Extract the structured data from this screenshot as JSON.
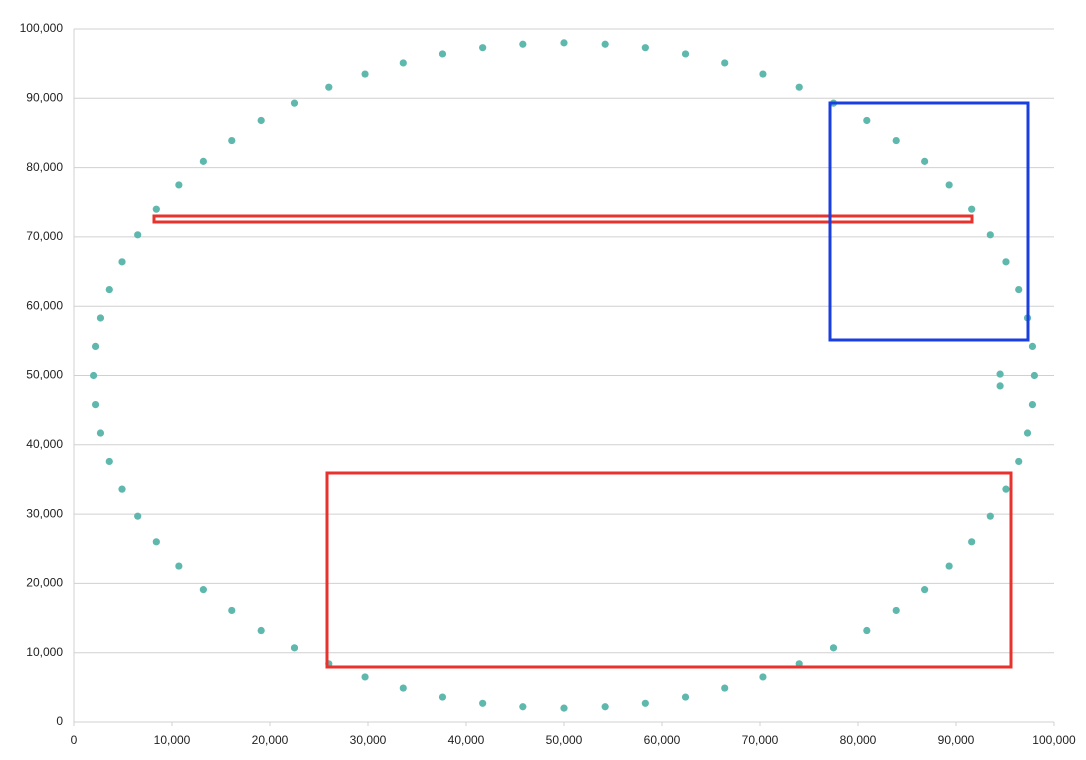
{
  "chart_data": {
    "type": "scatter",
    "color": "#5fb8ad",
    "x": [
      98000,
      97800,
      97300,
      96400,
      95100,
      93500,
      91600,
      89300,
      86800,
      83900,
      80900,
      77500,
      74000,
      70300,
      66400,
      62400,
      58300,
      54200,
      50000,
      45800,
      41700,
      37600,
      33600,
      29700,
      26000,
      22500,
      19100,
      16100,
      13200,
      10700,
      8400,
      6500,
      4900,
      3600,
      2700,
      2200,
      2000,
      2200,
      2700,
      3600,
      4900,
      6500,
      8400,
      10700,
      13200,
      16100,
      19100,
      22500,
      26000,
      29700,
      33600,
      37600,
      41700,
      45800,
      50000,
      54200,
      58300,
      62400,
      66400,
      70300,
      74000,
      77500,
      80900,
      83900,
      86800,
      89300,
      91600,
      93500,
      95100,
      96400,
      97300,
      97800,
      94500,
      94500
    ],
    "values": [
      50000,
      54200,
      58300,
      62400,
      66400,
      70300,
      74000,
      77500,
      80900,
      83900,
      86800,
      89300,
      91600,
      93500,
      95100,
      96400,
      97300,
      97800,
      98000,
      97800,
      97300,
      96400,
      95100,
      93500,
      91600,
      89300,
      86800,
      83900,
      80900,
      77500,
      74000,
      70300,
      66400,
      62400,
      58300,
      54200,
      50000,
      45800,
      41700,
      37600,
      33600,
      29700,
      26000,
      22500,
      19100,
      16100,
      13200,
      10700,
      8400,
      6500,
      4900,
      3600,
      2700,
      2200,
      2000,
      2200,
      2700,
      3600,
      4900,
      6500,
      8400,
      10700,
      13200,
      16100,
      19100,
      22500,
      26000,
      29700,
      33600,
      37600,
      41700,
      45800,
      50200,
      48500
    ],
    "xlim": [
      0,
      100000
    ],
    "xticks": [
      0,
      {
        "value": 10000,
        "label": "10,000"
      },
      {
        "value": 20000,
        "label": "20,000"
      },
      {
        "value": 30000,
        "label": "30,000"
      },
      {
        "value": 40000,
        "label": "40,000"
      },
      {
        "value": 50000,
        "label": "50,000"
      },
      {
        "value": 60000,
        "label": "60,000"
      },
      {
        "value": 70000,
        "label": "70,000"
      },
      {
        "value": 80000,
        "label": "80,000"
      },
      {
        "value": 90000,
        "label": "90,000"
      },
      {
        "value": 100000,
        "label": "100,000"
      }
    ],
    "ylim": [
      0,
      100000
    ],
    "yticks": [
      0,
      {
        "value": 10000,
        "label": "10,000"
      },
      {
        "value": 20000,
        "label": "20,000"
      },
      {
        "value": 30000,
        "label": "30,000"
      },
      {
        "value": 40000,
        "label": "40,000"
      },
      {
        "value": 50000,
        "label": "50,000"
      },
      {
        "value": 60000,
        "label": "60,000"
      },
      {
        "value": 70000,
        "label": "70,000"
      },
      {
        "value": 80000,
        "label": "80,000"
      },
      {
        "value": 90000,
        "label": "90,000"
      },
      {
        "value": 100000,
        "label": "100,000"
      }
    ],
    "grid": true
  }
}
